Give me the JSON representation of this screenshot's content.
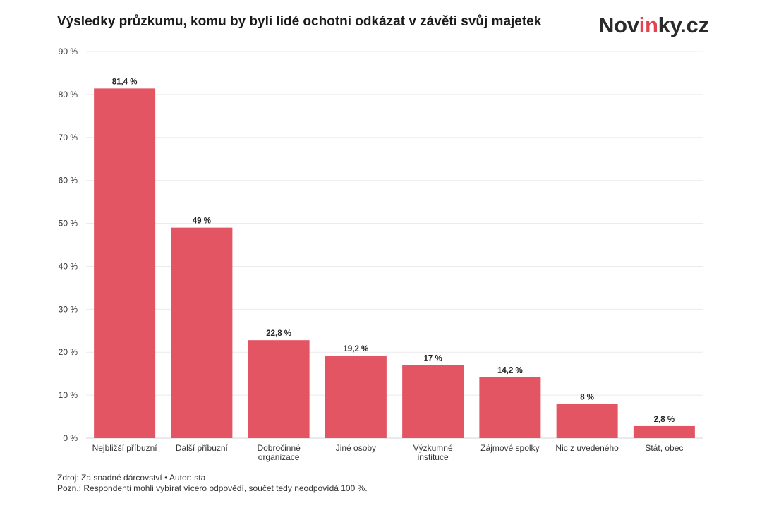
{
  "header": {
    "title": "Výsledky průzkumu, komu by byli lidé ochotni odkázat v závěti svůj majetek",
    "logo_prefix": "Nov",
    "logo_accent": "in",
    "logo_suffix": "ky.cz"
  },
  "footer": {
    "source": "Zdroj: Za snadné dárcovství • Autor: sta",
    "note": "Pozn.: Respondenti mohli vybírat vícero odpovědí, součet tedy neodpovídá 100 %."
  },
  "colors": {
    "bar": "#e35563",
    "grid": "#ebebeb",
    "logo_accent": "#e3434f"
  },
  "chart_data": {
    "type": "bar",
    "title": "Výsledky průzkumu, komu by byli lidé ochotni odkázat v závěti svůj majetek",
    "xlabel": "",
    "ylabel": "",
    "categories": [
      [
        "Nejbližší příbuzní"
      ],
      [
        "Další příbuzní"
      ],
      [
        "Dobročinné",
        "organizace"
      ],
      [
        "Jiné osoby"
      ],
      [
        "Výzkumné",
        "instituce"
      ],
      [
        "Zájmové spolky"
      ],
      [
        "Nic z uvedeného"
      ],
      [
        "Stát, obec"
      ]
    ],
    "values": [
      81.4,
      49,
      22.8,
      19.2,
      17,
      14.2,
      8,
      2.8
    ],
    "value_labels": [
      "81,4 %",
      "49 %",
      "22,8 %",
      "19,2 %",
      "17 %",
      "14,2 %",
      "8 %",
      "2,8 %"
    ],
    "ylim": [
      0,
      90
    ],
    "yticks": [
      0,
      10,
      20,
      30,
      40,
      50,
      60,
      70,
      80,
      90
    ],
    "ytick_labels": [
      "0 %",
      "10 %",
      "20 %",
      "30 %",
      "40 %",
      "50 %",
      "60 %",
      "70 %",
      "80 %",
      "90 %"
    ],
    "grid": true,
    "legend": "none"
  }
}
